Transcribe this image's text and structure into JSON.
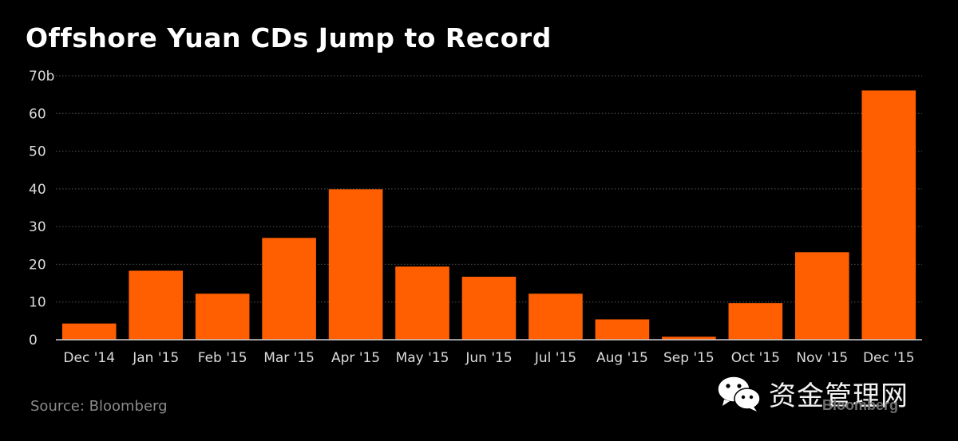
{
  "chart_data": {
    "type": "bar",
    "title": "Offshore Yuan CDs Jump to Record",
    "xlabel": "",
    "ylabel": "",
    "categories": [
      "Dec '14",
      "Jan '15",
      "Feb '15",
      "Mar '15",
      "Apr '15",
      "May '15",
      "Jun '15",
      "Jul '15",
      "Aug '15",
      "Sep '15",
      "Oct '15",
      "Nov '15",
      "Dec '15"
    ],
    "values": [
      4.3,
      18.3,
      12.2,
      27.0,
      39.9,
      19.4,
      16.7,
      12.2,
      5.4,
      0.8,
      9.7,
      23.2,
      66.1
    ],
    "ylim": [
      0,
      70
    ],
    "yticks": [
      0,
      10,
      20,
      30,
      40,
      50,
      60,
      70
    ],
    "ytick_labels": [
      "0",
      "10",
      "20",
      "30",
      "40",
      "50",
      "60",
      "70b"
    ],
    "grid": true,
    "legend": "none",
    "bar_color": "#ff5f00",
    "grid_color": "#555555",
    "background": "#000000",
    "text_color": "#dcdcdc"
  },
  "source": "Source: Bloomberg",
  "watermark": {
    "text": "资金管理网",
    "icon": "wechat-icon",
    "brand": "Bloomberg"
  }
}
